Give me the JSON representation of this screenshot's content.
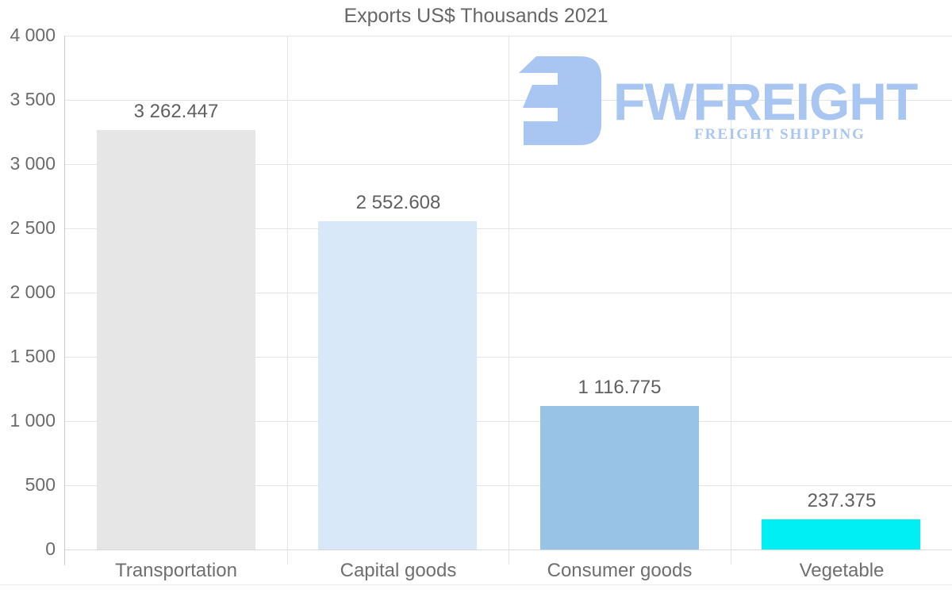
{
  "title": "Exports US$ Thousands 2021",
  "logo": {
    "wordmark": "FWFREIGHT",
    "subtitle": "FREIGHT SHIPPING",
    "color": "#a9c5f1"
  },
  "colors": {
    "background": "#ffffff",
    "gridline": "#e4e4e4",
    "axis_line": "#cccccc",
    "text_gray": "#666666"
  },
  "chart_data": {
    "type": "bar",
    "title": "Exports US$ Thousands 2021",
    "categories": [
      "Transportation",
      "Capital goods",
      "Consumer goods",
      "Vegetable"
    ],
    "values": [
      3262.447,
      2552.608,
      1116.775,
      237.375
    ],
    "value_labels": [
      "3 262.447",
      "2 552.608",
      "1 116.775",
      "237.375"
    ],
    "bar_colors": [
      "#e6e6e6",
      "#d9e8f8",
      "#99c3e6",
      "#00eff5"
    ],
    "xlabel": "",
    "ylabel": "",
    "ylim": [
      0,
      4000
    ],
    "ytick_step": 500,
    "ytick_labels": [
      "0",
      "500",
      "1 000",
      "1 500",
      "2 000",
      "2 500",
      "3 000",
      "3 500",
      "4 000"
    ],
    "grid": true,
    "legend": false
  }
}
